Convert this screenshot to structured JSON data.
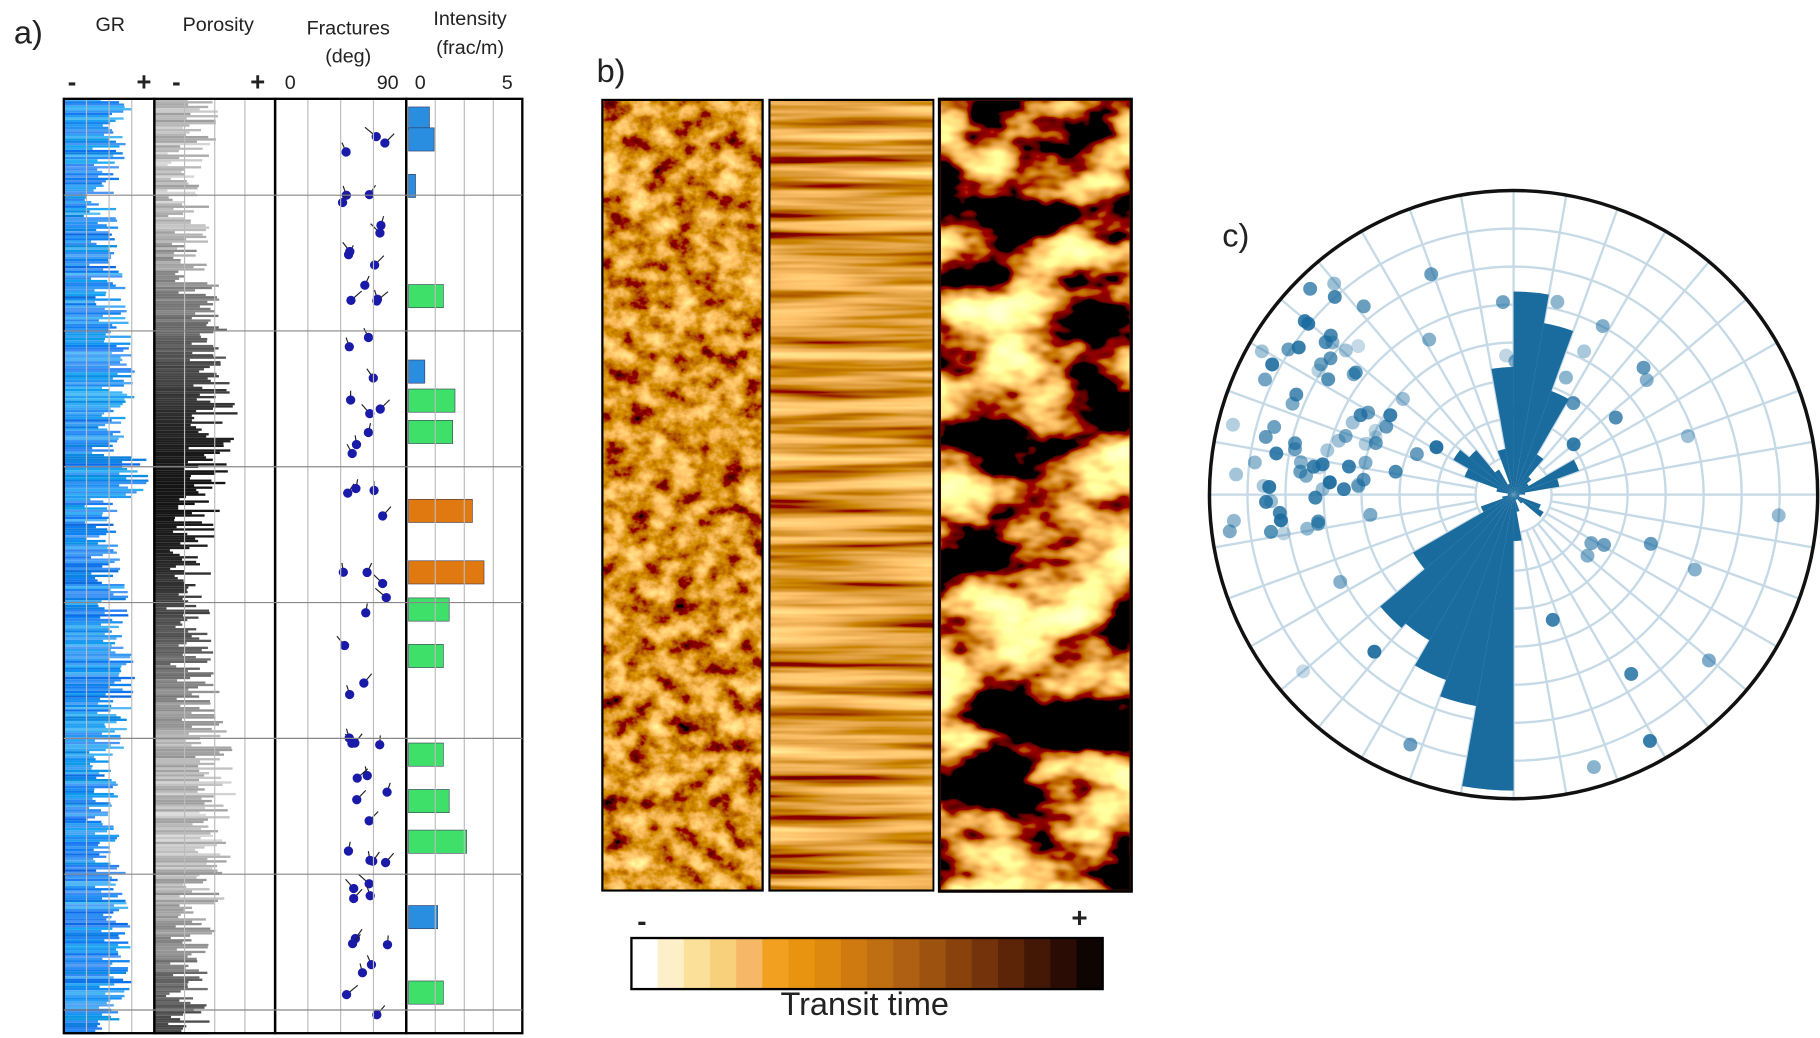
{
  "panels": [
    {
      "label": "a)",
      "tracks": [
        {
          "title": [
            "GR"
          ],
          "scale": [
            "-",
            "+"
          ]
        },
        {
          "title": [
            "Porosity"
          ],
          "scale": [
            "-",
            "+"
          ]
        },
        {
          "title": [
            "Fractures",
            "(deg)"
          ],
          "scale": [
            0,
            90
          ]
        },
        {
          "title": [
            "Intensity",
            "(frac/m)"
          ],
          "scale": [
            0,
            5
          ]
        }
      ]
    },
    {
      "label": "b)",
      "colorbar": {
        "scale": [
          "-",
          "+"
        ],
        "title": "Transit time"
      }
    },
    {
      "label": "c)"
    }
  ]
}
